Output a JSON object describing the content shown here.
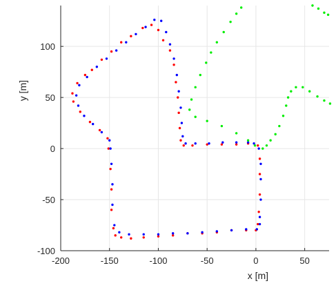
{
  "chart_data": {
    "type": "scatter",
    "title": "",
    "xlabel": "x [m]",
    "ylabel": "y [m]",
    "xlim": [
      -200,
      75
    ],
    "ylim": [
      -100,
      140
    ],
    "xticks": [
      -200,
      -150,
      -100,
      -50,
      0,
      50
    ],
    "yticks": [
      -100,
      -50,
      0,
      50,
      100
    ],
    "xtick_labels": [
      "-200",
      "-150",
      "-100",
      "-50",
      "0",
      "50"
    ],
    "ytick_labels": [
      "-100",
      "-50",
      "0",
      "50",
      "100"
    ],
    "grid": true,
    "legend": "none",
    "series": [
      {
        "color": "#ff0000",
        "marker": "dot",
        "points": [
          [
            2,
            3
          ],
          [
            4,
            -10
          ],
          [
            4,
            -25
          ],
          [
            4,
            -45
          ],
          [
            3,
            -62
          ],
          [
            2,
            -74
          ],
          [
            0,
            -80
          ],
          [
            -10,
            -80
          ],
          [
            -25,
            -80
          ],
          [
            -40,
            -82
          ],
          [
            -55,
            -83
          ],
          [
            -70,
            -83
          ],
          [
            -85,
            -85
          ],
          [
            -100,
            -86
          ],
          [
            -115,
            -87
          ],
          [
            -128,
            -88
          ],
          [
            -138,
            -87
          ],
          [
            -144,
            -85
          ],
          [
            -146,
            -78
          ],
          [
            -148,
            -60
          ],
          [
            -148,
            -40
          ],
          [
            -149,
            -20
          ],
          [
            -151,
            0
          ],
          [
            -152,
            10
          ],
          [
            -160,
            18
          ],
          [
            -170,
            26
          ],
          [
            -180,
            36
          ],
          [
            -187,
            46
          ],
          [
            -188,
            54
          ],
          [
            -183,
            64
          ],
          [
            -175,
            72
          ],
          [
            -168,
            77
          ],
          [
            -158,
            87
          ],
          [
            -148,
            95
          ],
          [
            -138,
            104
          ],
          [
            -128,
            110
          ],
          [
            -116,
            118
          ],
          [
            -107,
            121
          ],
          [
            -100,
            116
          ],
          [
            -95,
            106
          ],
          [
            -88,
            96
          ],
          [
            -84,
            82
          ],
          [
            -82,
            65
          ],
          [
            -80,
            50
          ],
          [
            -79,
            35
          ],
          [
            -78,
            20
          ],
          [
            -77,
            8
          ],
          [
            -74,
            3
          ],
          [
            -65,
            3
          ],
          [
            -50,
            4
          ],
          [
            -35,
            4
          ],
          [
            -20,
            4
          ],
          [
            -8,
            5
          ]
        ]
      },
      {
        "color": "#0000ff",
        "marker": "dot",
        "points": [
          [
            3,
            0
          ],
          [
            5,
            -15
          ],
          [
            5,
            -30
          ],
          [
            5,
            -50
          ],
          [
            4,
            -67
          ],
          [
            4,
            -74
          ],
          [
            1,
            -79
          ],
          [
            -10,
            -79
          ],
          [
            -25,
            -80
          ],
          [
            -40,
            -81
          ],
          [
            -55,
            -82
          ],
          [
            -70,
            -83
          ],
          [
            -85,
            -83
          ],
          [
            -100,
            -84
          ],
          [
            -115,
            -84
          ],
          [
            -130,
            -84
          ],
          [
            -140,
            -82
          ],
          [
            -145,
            -75
          ],
          [
            -147,
            -55
          ],
          [
            -147,
            -35
          ],
          [
            -148,
            -15
          ],
          [
            -149,
            0
          ],
          [
            -150,
            8
          ],
          [
            -158,
            16
          ],
          [
            -167,
            24
          ],
          [
            -176,
            32
          ],
          [
            -182,
            42
          ],
          [
            -184,
            52
          ],
          [
            -181,
            62
          ],
          [
            -173,
            70
          ],
          [
            -163,
            80
          ],
          [
            -153,
            88
          ],
          [
            -143,
            96
          ],
          [
            -133,
            104
          ],
          [
            -123,
            112
          ],
          [
            -113,
            119
          ],
          [
            -104,
            126
          ],
          [
            -97,
            125
          ],
          [
            -92,
            114
          ],
          [
            -88,
            102
          ],
          [
            -84,
            88
          ],
          [
            -81,
            72
          ],
          [
            -79,
            56
          ],
          [
            -77,
            40
          ],
          [
            -76,
            25
          ],
          [
            -75,
            12
          ],
          [
            -72,
            5
          ],
          [
            -62,
            5
          ],
          [
            -48,
            5
          ],
          [
            -34,
            6
          ],
          [
            -20,
            6
          ],
          [
            -8,
            6
          ],
          [
            -2,
            5
          ]
        ]
      },
      {
        "color": "#00ee00",
        "marker": "dot",
        "points": [
          [
            7,
            0
          ],
          [
            11,
            3
          ],
          [
            15,
            8
          ],
          [
            20,
            14
          ],
          [
            24,
            22
          ],
          [
            28,
            32
          ],
          [
            31,
            42
          ],
          [
            33,
            50
          ],
          [
            36,
            56
          ],
          [
            41,
            60
          ],
          [
            48,
            60
          ],
          [
            55,
            56
          ],
          [
            63,
            51
          ],
          [
            70,
            47
          ],
          [
            76,
            44
          ],
          [
            -1,
            3
          ],
          [
            -8,
            8
          ],
          [
            -20,
            15
          ],
          [
            -35,
            22
          ],
          [
            -50,
            27
          ],
          [
            -62,
            31
          ],
          [
            -68,
            38
          ],
          [
            -66,
            48
          ],
          [
            -62,
            60
          ],
          [
            -57,
            72
          ],
          [
            -51,
            84
          ],
          [
            -46,
            94
          ],
          [
            -40,
            104
          ],
          [
            -33,
            114
          ],
          [
            -26,
            124
          ],
          [
            -20,
            132
          ],
          [
            -15,
            138
          ],
          [
            58,
            140
          ],
          [
            64,
            137
          ],
          [
            70,
            133
          ],
          [
            74,
            131
          ]
        ]
      }
    ]
  }
}
